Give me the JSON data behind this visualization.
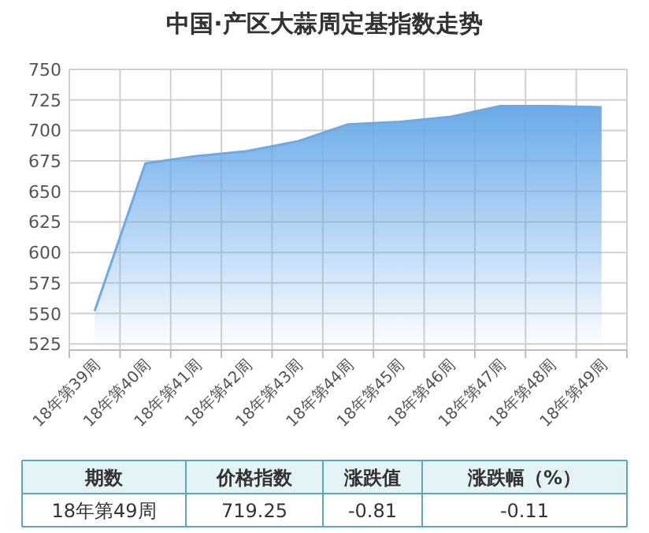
{
  "chart_data": {
    "type": "area",
    "title": "中国·产区大蒜周定基指数走势",
    "categories": [
      "18年第39周",
      "18年第40周",
      "18年第41周",
      "18年第42周",
      "18年第43周",
      "18年第44周",
      "18年第45周",
      "18年第46周",
      "18年第47周",
      "18年第48周",
      "18年第49周"
    ],
    "series": [
      {
        "color": "#6aaae8",
        "values": [
          552,
          673,
          679,
          683,
          691,
          705,
          707,
          711,
          720,
          720,
          719
        ]
      }
    ],
    "ylim": [
      520,
      750
    ],
    "yticks": [
      525,
      550,
      575,
      600,
      625,
      650,
      675,
      700,
      725,
      750
    ],
    "grid": true,
    "annotations": [
      "期数",
      "价格指数",
      "涨跌值",
      "涨跌幅（%）",
      "18年第49周",
      "719.25",
      "-0.81",
      "-0.11"
    ]
  }
}
